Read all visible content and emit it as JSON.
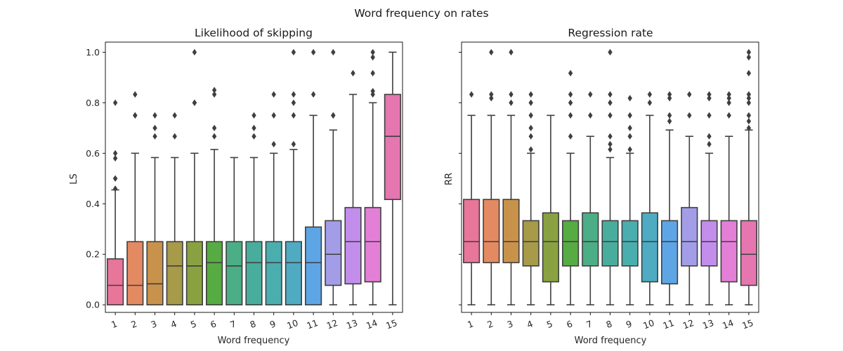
{
  "figure_title": "Word frequency on rates",
  "chart_data": [
    {
      "type": "box",
      "title": "Likelihood of skipping",
      "xlabel": "Word frequency",
      "ylabel": "LS",
      "ylim": [
        -0.03,
        1.04
      ],
      "yticks": [
        "0.0",
        "0.2",
        "0.4",
        "0.6",
        "0.8",
        "1.0"
      ],
      "categories": [
        "1",
        "2",
        "3",
        "4",
        "5",
        "6",
        "7",
        "8",
        "9",
        "10",
        "11",
        "12",
        "13",
        "14",
        "15"
      ],
      "colors": [
        "#e8769b",
        "#e48a62",
        "#c9924b",
        "#a79a48",
        "#8aa141",
        "#56ab42",
        "#4bae86",
        "#49ad9d",
        "#4aaeae",
        "#4eabc1",
        "#5ea5e6",
        "#a39de8",
        "#c38deb",
        "#e47fd8",
        "#e576b0"
      ],
      "boxes": [
        {
          "min": 0.0,
          "q1": 0.0,
          "median": 0.077,
          "q3": 0.182,
          "max": 0.455,
          "outliers": [
            0.46,
            0.5,
            0.5,
            0.58,
            0.6,
            0.8
          ]
        },
        {
          "min": 0.0,
          "q1": 0.0,
          "median": 0.077,
          "q3": 0.25,
          "max": 0.6,
          "outliers": [
            0.75,
            0.75,
            0.833
          ]
        },
        {
          "min": 0.0,
          "q1": 0.0,
          "median": 0.083,
          "q3": 0.25,
          "max": 0.583,
          "outliers": [
            0.667,
            0.7,
            0.75
          ]
        },
        {
          "min": 0.0,
          "q1": 0.0,
          "median": 0.154,
          "q3": 0.25,
          "max": 0.583,
          "outliers": [
            0.667,
            0.75
          ]
        },
        {
          "min": 0.0,
          "q1": 0.0,
          "median": 0.154,
          "q3": 0.25,
          "max": 0.6,
          "outliers": [
            0.8,
            0.8,
            1.0
          ]
        },
        {
          "min": 0.0,
          "q1": 0.0,
          "median": 0.167,
          "q3": 0.25,
          "max": 0.615,
          "outliers": [
            0.667,
            0.7,
            0.833,
            0.85
          ]
        },
        {
          "min": 0.0,
          "q1": 0.0,
          "median": 0.154,
          "q3": 0.25,
          "max": 0.583,
          "outliers": []
        },
        {
          "min": 0.0,
          "q1": 0.0,
          "median": 0.167,
          "q3": 0.25,
          "max": 0.583,
          "outliers": [
            0.667,
            0.7,
            0.75
          ]
        },
        {
          "min": 0.0,
          "q1": 0.0,
          "median": 0.167,
          "q3": 0.25,
          "max": 0.6,
          "outliers": [
            0.636,
            0.75,
            0.833
          ]
        },
        {
          "min": 0.0,
          "q1": 0.0,
          "median": 0.167,
          "q3": 0.25,
          "max": 0.615,
          "outliers": [
            0.636,
            0.75,
            0.8,
            0.833,
            1.0
          ]
        },
        {
          "min": 0.0,
          "q1": 0.0,
          "median": 0.167,
          "q3": 0.308,
          "max": 0.75,
          "outliers": [
            0.833,
            1.0
          ]
        },
        {
          "min": 0.0,
          "q1": 0.077,
          "median": 0.2,
          "q3": 0.333,
          "max": 0.692,
          "outliers": [
            0.75,
            0.75,
            1.0
          ]
        },
        {
          "min": 0.0,
          "q1": 0.083,
          "median": 0.25,
          "q3": 0.385,
          "max": 0.833,
          "outliers": [
            0.917
          ]
        },
        {
          "min": 0.0,
          "q1": 0.091,
          "median": 0.25,
          "q3": 0.385,
          "max": 0.8,
          "outliers": [
            0.833,
            0.846,
            0.917,
            0.98,
            1.0
          ]
        },
        {
          "min": 0.0,
          "q1": 0.417,
          "median": 0.667,
          "q3": 0.833,
          "max": 1.0,
          "outliers": []
        }
      ]
    },
    {
      "type": "box",
      "title": "Regression rate",
      "xlabel": "Word frequency",
      "ylabel": "RR",
      "ylim": [
        -0.03,
        1.04
      ],
      "yticks": [],
      "categories": [
        "1",
        "2",
        "3",
        "4",
        "5",
        "6",
        "7",
        "8",
        "9",
        "10",
        "11",
        "12",
        "13",
        "14",
        "15"
      ],
      "colors": [
        "#e8769b",
        "#e48a62",
        "#c9924b",
        "#a79a48",
        "#8aa141",
        "#56ab42",
        "#4bae86",
        "#49ad9d",
        "#4aaeae",
        "#4eabc1",
        "#5ea5e6",
        "#a39de8",
        "#c38deb",
        "#e47fd8",
        "#e576b0"
      ],
      "boxes": [
        {
          "min": 0.0,
          "q1": 0.167,
          "median": 0.25,
          "q3": 0.417,
          "max": 0.75,
          "outliers": [
            0.833
          ]
        },
        {
          "min": 0.0,
          "q1": 0.167,
          "median": 0.25,
          "q3": 0.417,
          "max": 0.75,
          "outliers": [
            0.818,
            0.833,
            1.0
          ]
        },
        {
          "min": 0.0,
          "q1": 0.167,
          "median": 0.25,
          "q3": 0.417,
          "max": 0.75,
          "outliers": [
            0.8,
            0.833,
            1.0
          ]
        },
        {
          "min": 0.0,
          "q1": 0.154,
          "median": 0.25,
          "q3": 0.333,
          "max": 0.6,
          "outliers": [
            0.615,
            0.667,
            0.7,
            0.75,
            0.8,
            0.833
          ]
        },
        {
          "min": 0.0,
          "q1": 0.091,
          "median": 0.25,
          "q3": 0.364,
          "max": 0.75,
          "outliers": []
        },
        {
          "min": 0.0,
          "q1": 0.154,
          "median": 0.25,
          "q3": 0.333,
          "max": 0.6,
          "outliers": [
            0.667,
            0.75,
            0.8,
            0.833,
            0.917
          ]
        },
        {
          "min": 0.0,
          "q1": 0.154,
          "median": 0.25,
          "q3": 0.364,
          "max": 0.667,
          "outliers": [
            0.75,
            0.833
          ]
        },
        {
          "min": 0.0,
          "q1": 0.154,
          "median": 0.25,
          "q3": 0.333,
          "max": 0.583,
          "outliers": [
            0.615,
            0.636,
            0.667,
            0.75,
            0.8,
            0.833,
            1.0
          ]
        },
        {
          "min": 0.0,
          "q1": 0.154,
          "median": 0.25,
          "q3": 0.333,
          "max": 0.6,
          "outliers": [
            0.615,
            0.667,
            0.7,
            0.75,
            0.818
          ]
        },
        {
          "min": 0.0,
          "q1": 0.091,
          "median": 0.25,
          "q3": 0.364,
          "max": 0.75,
          "outliers": [
            0.8,
            0.833
          ]
        },
        {
          "min": 0.0,
          "q1": 0.083,
          "median": 0.25,
          "q3": 0.333,
          "max": 0.692,
          "outliers": [
            0.727,
            0.75,
            0.818,
            0.833
          ]
        },
        {
          "min": 0.0,
          "q1": 0.154,
          "median": 0.25,
          "q3": 0.385,
          "max": 0.667,
          "outliers": [
            0.75,
            0.833
          ]
        },
        {
          "min": 0.0,
          "q1": 0.154,
          "median": 0.25,
          "q3": 0.333,
          "max": 0.6,
          "outliers": [
            0.636,
            0.667,
            0.75,
            0.818,
            0.833
          ]
        },
        {
          "min": 0.0,
          "q1": 0.091,
          "median": 0.25,
          "q3": 0.333,
          "max": 0.667,
          "outliers": [
            0.75,
            0.8,
            0.818,
            0.833
          ]
        },
        {
          "min": 0.0,
          "q1": 0.077,
          "median": 0.2,
          "q3": 0.333,
          "max": 0.692,
          "outliers": [
            0.7,
            0.727,
            0.75,
            0.8,
            0.818,
            0.833,
            0.917,
            0.98,
            1.0
          ]
        }
      ]
    }
  ]
}
